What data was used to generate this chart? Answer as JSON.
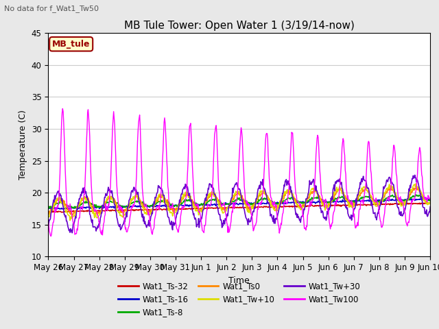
{
  "title": "MB Tule Tower: Open Water 1 (3/19/14-now)",
  "subtitle": "No data for f_Wat1_Tw50",
  "ylabel": "Temperature (C)",
  "xlabel": "Time",
  "ylim": [
    10,
    45
  ],
  "yticks": [
    10,
    15,
    20,
    25,
    30,
    35,
    40,
    45
  ],
  "x_tick_labels": [
    "May 26",
    "May 27",
    "May 28",
    "May 29",
    "May 30",
    "May 31",
    "Jun 1",
    "Jun 2",
    "Jun 3",
    "Jun 4",
    "Jun 5",
    "Jun 6",
    "Jun 7",
    "Jun 8",
    "Jun 9",
    "Jun 10"
  ],
  "fig_bg_color": "#e8e8e8",
  "plot_bg_color": "#ffffff",
  "legend_box_color": "#ffffcc",
  "legend_box_edge": "#990000",
  "legend_box_text": "MB_tule",
  "series_colors": {
    "Wat1_Ts-32": "#cc0000",
    "Wat1_Ts-16": "#0000cc",
    "Wat1_Ts-8": "#00aa00",
    "Wat1_Ts0": "#ff8800",
    "Wat1_Tw+10": "#dddd00",
    "Wat1_Tw+30": "#6600cc",
    "Wat1_Tw100": "#ff00ff"
  },
  "legend_order": [
    "Wat1_Ts-32",
    "Wat1_Ts-16",
    "Wat1_Ts-8",
    "Wat1_Ts0",
    "Wat1_Tw+10",
    "Wat1_Tw+30",
    "Wat1_Tw100"
  ]
}
